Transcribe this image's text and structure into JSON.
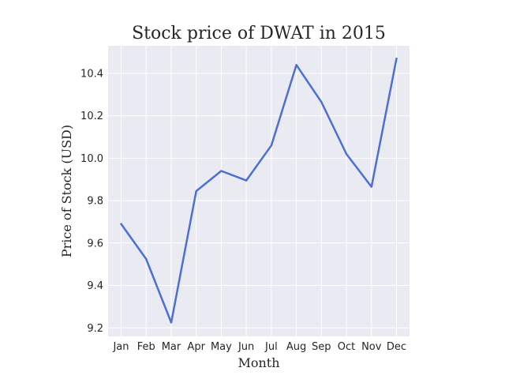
{
  "chart_data": {
    "type": "line",
    "title": "Stock price of DWAT in 2015",
    "xlabel": "Month",
    "ylabel": "Price of Stock (USD)",
    "categories": [
      "Jan",
      "Feb",
      "Mar",
      "Apr",
      "May",
      "Jun",
      "Jul",
      "Aug",
      "Sep",
      "Oct",
      "Nov",
      "Dec"
    ],
    "series": [
      {
        "values": [
          9.69,
          9.525,
          9.225,
          9.845,
          9.94,
          9.895,
          10.06,
          10.44,
          10.265,
          10.02,
          9.865,
          10.47
        ],
        "color": "#4c6fd1"
      }
    ],
    "yticks": [
      9.2,
      9.4,
      9.6,
      9.8,
      10.0,
      10.2,
      10.4
    ],
    "ytick_labels": [
      "9.2",
      "9.4",
      "9.6",
      "9.8",
      "10.0",
      "10.2",
      "10.4"
    ],
    "ylim": [
      9.16,
      10.53
    ],
    "grid": true,
    "background_color": "#eaeaf2"
  }
}
